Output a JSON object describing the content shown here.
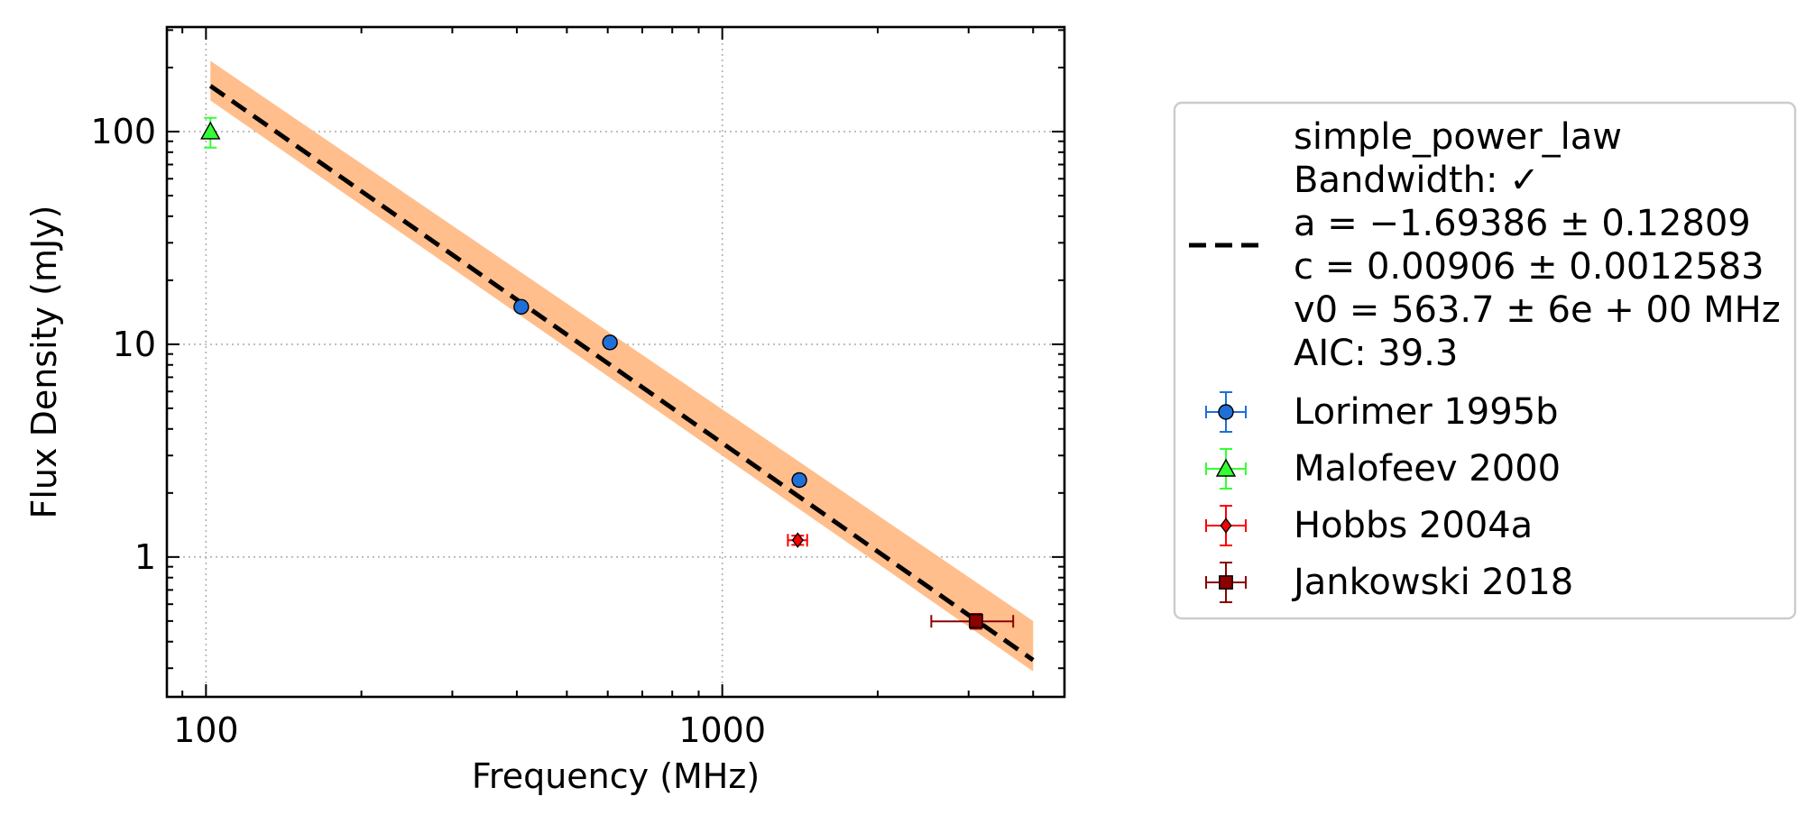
{
  "chart_data": {
    "type": "scatter",
    "xlabel": "Frequency (MHz)",
    "ylabel": "Flux Density (mJy)",
    "xscale": "log",
    "yscale": "log",
    "xlim": [
      84,
      4600
    ],
    "ylim": [
      0.22,
      310
    ],
    "xticks": [
      100,
      1000
    ],
    "xtick_labels": [
      "100",
      "1000"
    ],
    "yticks": [
      1,
      10,
      100
    ],
    "ytick_labels": [
      "1",
      "10",
      "100"
    ],
    "grid": true,
    "legend_position": "outside-right",
    "fit": {
      "name": "simple_power_law",
      "lines": [
        "simple_power_law",
        "Bandwidth: ✓",
        "a = −1.69386 ± 0.12809",
        "c = 0.00906 ± 0.0012583",
        "v0 = 563.7 ± 6e + 00 MHz",
        "AIC: 39.3"
      ],
      "a": -1.69386,
      "c": 0.00906,
      "v0": 563.7,
      "x_range": [
        102,
        4000
      ],
      "band_y_low": [
        140,
        0.29
      ],
      "band_y_high": [
        215,
        0.5
      ],
      "color": "#000000",
      "band_color": "#ffbe8c"
    },
    "series": [
      {
        "name": "Lorimer 1995b",
        "marker": "circle",
        "color": "#1f6fd6",
        "points": [
          {
            "x": 408,
            "y": 15.0,
            "yerr": 0.6,
            "xerr": 0
          },
          {
            "x": 606,
            "y": 10.2,
            "yerr": 0.4,
            "xerr": 0
          },
          {
            "x": 1410,
            "y": 2.3,
            "yerr": 0.12,
            "xerr": 0
          }
        ]
      },
      {
        "name": "Malofeev 2000",
        "marker": "triangle",
        "color": "#33ff33",
        "points": [
          {
            "x": 102,
            "y": 100,
            "yerr": 16,
            "xerr": 0
          }
        ]
      },
      {
        "name": "Hobbs 2004a",
        "marker": "diamond",
        "color": "#ff0000",
        "points": [
          {
            "x": 1400,
            "y": 1.2,
            "yerr": 0.06,
            "xerr": 60
          }
        ]
      },
      {
        "name": "Jankowski 2018",
        "marker": "square",
        "color": "#8b0000",
        "points": [
          {
            "x": 3100,
            "y": 0.5,
            "yerr": 0.04,
            "xerr": 560
          }
        ]
      }
    ]
  }
}
